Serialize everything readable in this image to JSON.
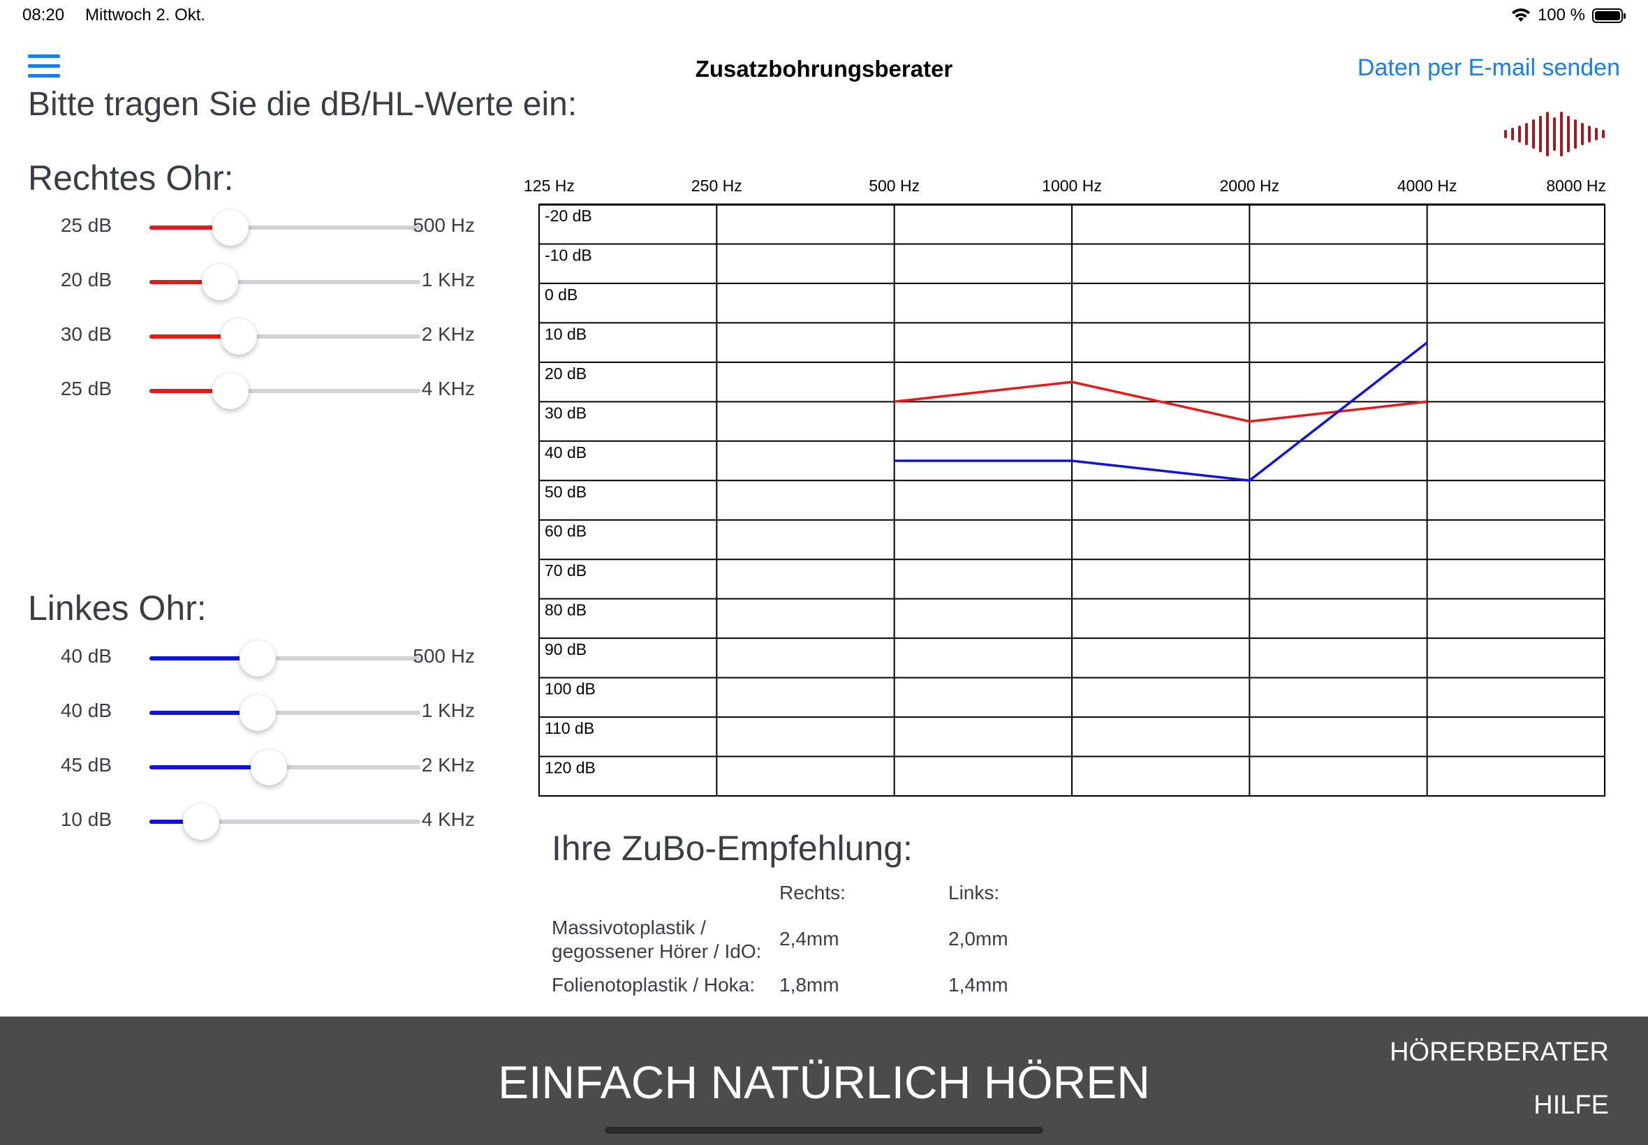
{
  "status_bar": {
    "time": "08:20",
    "date": "Mittwoch 2. Okt.",
    "battery": "100 %",
    "battery_level": 1.0
  },
  "nav": {
    "title": "Zusatzbohrungsberater",
    "action": "Daten per E-mail senden",
    "menu_icon": "hamburger-menu-icon"
  },
  "prompt": "Bitte tragen Sie die dB/HL-Werte ein:",
  "right_ear": {
    "title": "Rechtes Ohr:",
    "color": "#e8191b",
    "sliders": [
      {
        "value_label": "25 dB",
        "freq_label": "500 Hz",
        "level": 0.3
      },
      {
        "value_label": "20 dB",
        "freq_label": "1 KHz",
        "level": 0.26
      },
      {
        "value_label": "30 dB",
        "freq_label": "2 KHz",
        "level": 0.33
      },
      {
        "value_label": "25 dB",
        "freq_label": "4 KHz",
        "level": 0.3
      }
    ]
  },
  "left_ear": {
    "title": "Linkes Ohr:",
    "color": "#1212e0",
    "sliders": [
      {
        "value_label": "40 dB",
        "freq_label": "500 Hz",
        "level": 0.4
      },
      {
        "value_label": "40 dB",
        "freq_label": "1 KHz",
        "level": 0.4
      },
      {
        "value_label": "45 dB",
        "freq_label": "2 KHz",
        "level": 0.44
      },
      {
        "value_label": "10 dB",
        "freq_label": "4 KHz",
        "level": 0.19
      }
    ]
  },
  "chart_data": {
    "type": "line",
    "x_tick_labels": [
      "125 Hz",
      "250 Hz",
      "500 Hz",
      "1000 Hz",
      "2000 Hz",
      "4000 Hz",
      "8000 Hz"
    ],
    "x_values": [
      125,
      250,
      500,
      1000,
      2000,
      4000,
      8000
    ],
    "y_tick_labels": [
      "-20 dB",
      "-10 dB",
      "0 dB",
      "10 dB",
      "20 dB",
      "30 dB",
      "40 dB",
      "50 dB",
      "60 dB",
      "70 dB",
      "80 dB",
      "90 dB",
      "100 dB",
      "110 dB",
      "120 dB"
    ],
    "ylim": [
      -25,
      125
    ],
    "y_inverted": true,
    "x_scale": "log",
    "grid": true,
    "series": [
      {
        "color": "#e8191b",
        "x": [
          500,
          1000,
          2000,
          4000
        ],
        "y": [
          25,
          20,
          30,
          25
        ]
      },
      {
        "color": "#1212e0",
        "x": [
          500,
          1000,
          2000,
          4000
        ],
        "y": [
          40,
          40,
          45,
          10
        ]
      }
    ]
  },
  "recommendation": {
    "title": "Ihre ZuBo-Empfehlung:",
    "col_right": "Rechts:",
    "col_left": "Links:",
    "rows": [
      {
        "label_line1": "Massivotoplastik /",
        "label_line2": "gegossener Hörer / IdO:",
        "right": "2,4mm",
        "left": "2,0mm"
      },
      {
        "label_line1": "Folienotoplastik / Hoka:",
        "label_line2": "",
        "right": "1,8mm",
        "left": "1,4mm"
      }
    ]
  },
  "footer": {
    "slogan": "EINFACH NATÜRLICH HÖREN",
    "button_hoerer": "HÖRERBERATER",
    "button_hilfe": "HILFE"
  },
  "logo": {
    "icon": "sound-wave-logo-icon",
    "color": "#a3191f"
  }
}
